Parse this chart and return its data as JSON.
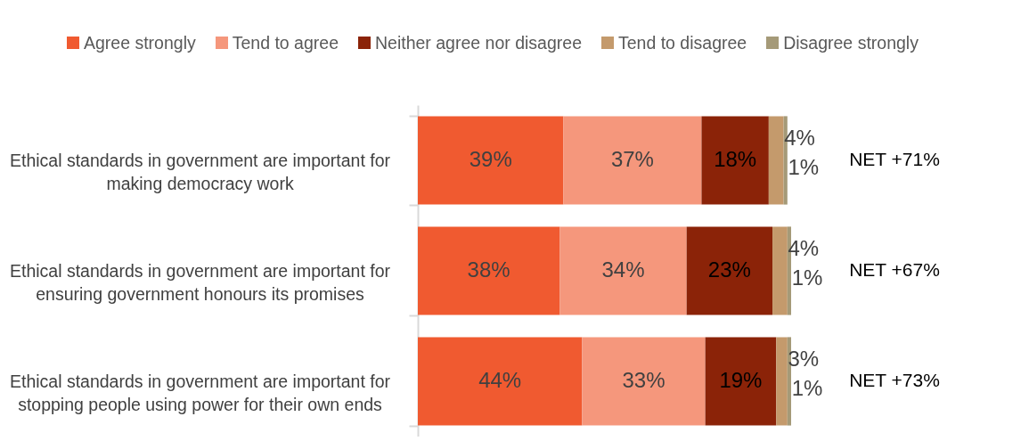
{
  "chart_data": {
    "type": "bar",
    "orientation": "horizontal",
    "stacked": true,
    "legend": "top",
    "categories": [
      "Ethical standards in government are important for making democracy work",
      "Ethical standards in government are important for ensuring government honours its promises",
      "Ethical standards in government are important for stopping people using power for their own ends"
    ],
    "series": [
      {
        "name": "Agree strongly",
        "color": "#f05a30",
        "values": [
          39,
          38,
          44
        ],
        "value_labels": [
          "39%",
          "38%",
          "44%"
        ]
      },
      {
        "name": "Tend to agree",
        "color": "#f5977c",
        "values": [
          37,
          34,
          33
        ],
        "value_labels": [
          "37%",
          "34%",
          "33%"
        ]
      },
      {
        "name": "Neither agree nor disagree",
        "color": "#8b2308",
        "values": [
          18,
          23,
          19
        ],
        "value_labels": [
          "18%",
          "23%",
          "19%"
        ]
      },
      {
        "name": "Tend to disagree",
        "color": "#c49a6c",
        "values": [
          4,
          4,
          3
        ],
        "value_labels": [
          "4%",
          "4%",
          "3%"
        ]
      },
      {
        "name": "Disagree strongly",
        "color": "#a59a78",
        "values": [
          1,
          1,
          1
        ],
        "value_labels": [
          "1%",
          "1%",
          "1%"
        ]
      }
    ],
    "annotations": [
      "NET +71%",
      "NET +67%",
      "NET +73%"
    ]
  }
}
